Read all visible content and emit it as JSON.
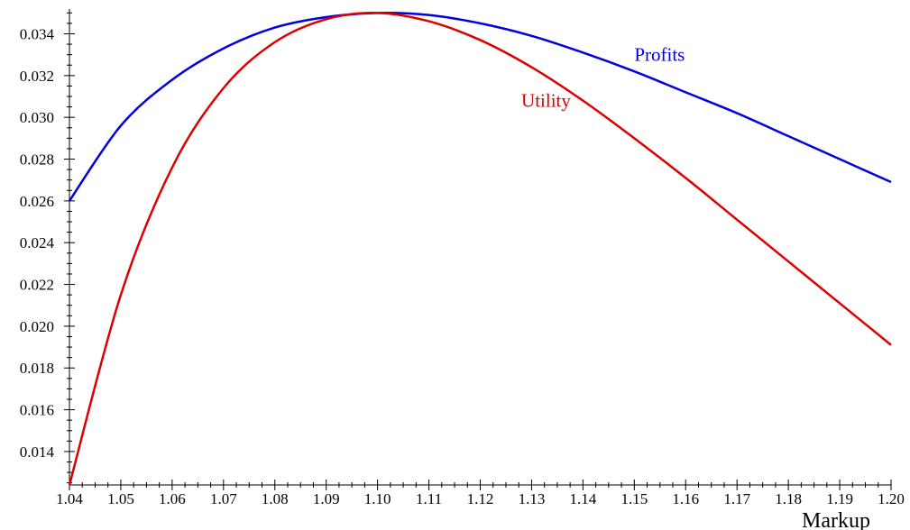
{
  "chart_data": {
    "type": "line",
    "title": "",
    "xlabel": "Markup",
    "ylabel": "",
    "xlim": [
      1.04,
      1.2
    ],
    "ylim": [
      0.0124,
      0.0351
    ],
    "grid": false,
    "x_ticks": [
      1.04,
      1.05,
      1.06,
      1.07,
      1.08,
      1.09,
      1.1,
      1.11,
      1.12,
      1.13,
      1.14,
      1.15,
      1.16,
      1.17,
      1.18,
      1.19,
      1.2
    ],
    "x_tick_labels": [
      "1.04",
      "1.05",
      "1.06",
      "1.07",
      "1.08",
      "1.09",
      "1.10",
      "1.11",
      "1.12",
      "1.13",
      "1.14",
      "1.15",
      "1.16",
      "1.17",
      "1.18",
      "1.19",
      "1.20"
    ],
    "y_ticks": [
      0.014,
      0.016,
      0.018,
      0.02,
      0.022,
      0.024,
      0.026,
      0.028,
      0.03,
      0.032,
      0.034
    ],
    "y_tick_labels": [
      "0.014",
      "0.016",
      "0.018",
      "0.020",
      "0.022",
      "0.024",
      "0.026",
      "0.028",
      "0.030",
      "0.032",
      "0.034"
    ],
    "x": [
      1.04,
      1.05,
      1.06,
      1.07,
      1.08,
      1.09,
      1.1,
      1.11,
      1.12,
      1.13,
      1.14,
      1.15,
      1.16,
      1.17,
      1.18,
      1.19,
      1.2
    ],
    "series": [
      {
        "name": "Profits",
        "color": "#0000dd",
        "values": [
          0.026,
          0.0296,
          0.0318,
          0.0333,
          0.0343,
          0.0348,
          0.035,
          0.0349,
          0.0345,
          0.0339,
          0.0331,
          0.0322,
          0.0312,
          0.0302,
          0.0291,
          0.028,
          0.0269
        ],
        "label_at": [
          1.15,
          0.0327
        ]
      },
      {
        "name": "Utility",
        "color": "#dd0000",
        "values": [
          0.0124,
          0.0215,
          0.0276,
          0.0314,
          0.0336,
          0.0347,
          0.035,
          0.0346,
          0.0337,
          0.0324,
          0.0308,
          0.029,
          0.0271,
          0.0251,
          0.0231,
          0.0211,
          0.0191
        ],
        "label_at": [
          1.128,
          0.0305
        ]
      }
    ]
  }
}
